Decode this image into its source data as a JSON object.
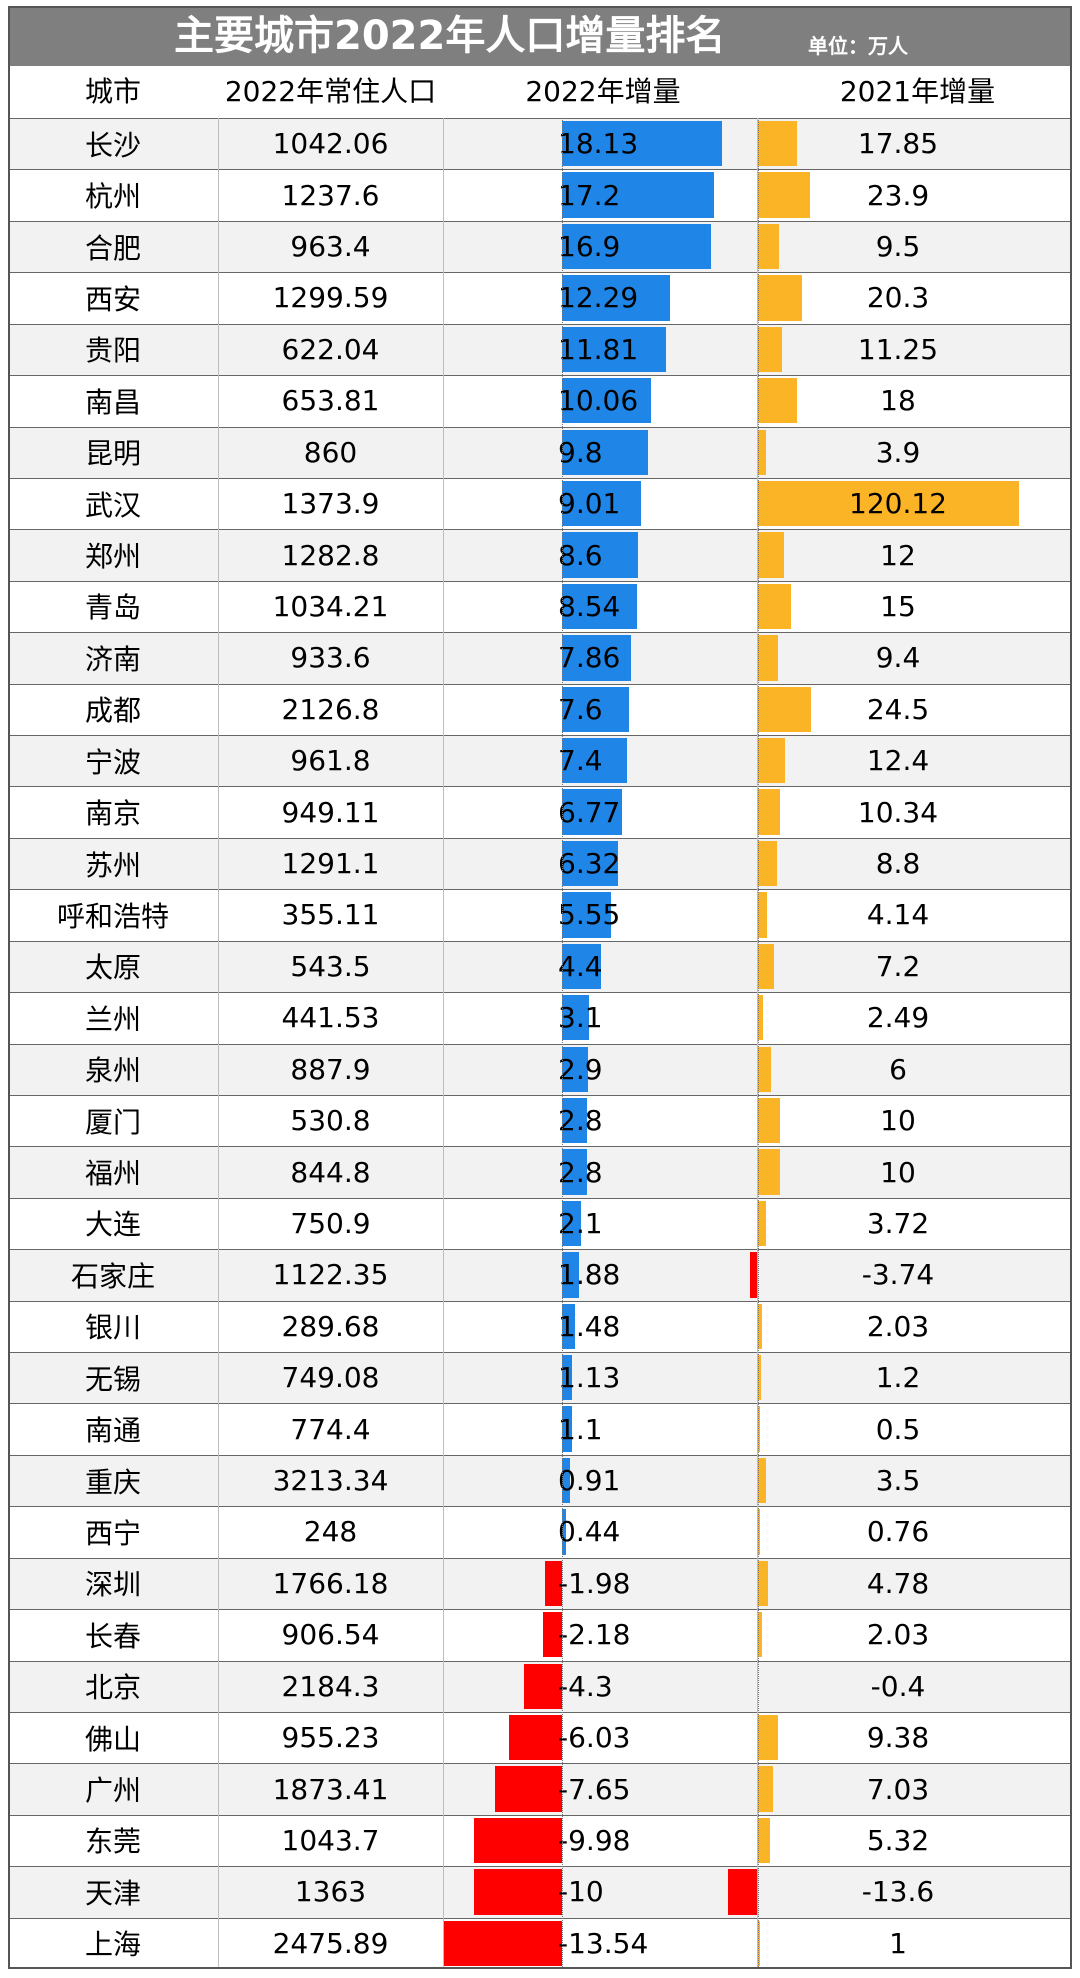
{
  "header": {
    "title": "主要城市2022年人口增量排名",
    "unit": "单位：万人"
  },
  "columns": {
    "city": "城市",
    "population": "2022年常住人口",
    "inc2022": "2022年增量",
    "inc2021": "2021年增量"
  },
  "colors": {
    "positive_2022": "#1f86e8",
    "positive_2021": "#fbb426",
    "negative": "#ff0000",
    "title_bg": "#7f7f7f"
  },
  "chart_data": {
    "type": "bar",
    "categories": [
      "长沙",
      "杭州",
      "合肥",
      "西安",
      "贵阳",
      "南昌",
      "昆明",
      "武汉",
      "郑州",
      "青岛",
      "济南",
      "成都",
      "宁波",
      "南京",
      "苏州",
      "呼和浩特",
      "太原",
      "兰州",
      "泉州",
      "厦门",
      "福州",
      "大连",
      "石家庄",
      "银川",
      "无锡",
      "南通",
      "重庆",
      "西宁",
      "深圳",
      "长春",
      "北京",
      "佛山",
      "广州",
      "东莞",
      "天津",
      "上海"
    ],
    "population_2022": [
      1042.06,
      1237.6,
      963.4,
      1299.59,
      622.04,
      653.81,
      860,
      1373.9,
      1282.8,
      1034.21,
      933.6,
      2126.8,
      961.8,
      949.11,
      1291.1,
      355.11,
      543.5,
      441.53,
      887.9,
      530.8,
      844.8,
      750.9,
      1122.35,
      289.68,
      749.08,
      774.4,
      3213.34,
      248,
      1766.18,
      906.54,
      2184.3,
      955.23,
      1873.41,
      1043.7,
      1363,
      2475.89
    ],
    "series": [
      {
        "name": "2022年增量",
        "values": [
          18.13,
          17.2,
          16.9,
          12.29,
          11.81,
          10.06,
          9.8,
          9.01,
          8.6,
          8.54,
          7.86,
          7.6,
          7.4,
          6.77,
          6.32,
          5.55,
          4.4,
          3.1,
          2.9,
          2.8,
          2.8,
          2.1,
          1.88,
          1.48,
          1.13,
          1.1,
          0.91,
          0.44,
          -1.98,
          -2.18,
          -4.3,
          -6.03,
          -7.65,
          -9.98,
          -10,
          -13.54
        ]
      },
      {
        "name": "2021年增量",
        "values": [
          17.85,
          23.9,
          9.5,
          20.3,
          11.25,
          18,
          3.9,
          120.12,
          12,
          15,
          9.4,
          24.5,
          12.4,
          10.34,
          8.8,
          4.14,
          7.2,
          2.49,
          6,
          10,
          10,
          3.72,
          -3.74,
          2.03,
          1.2,
          0.5,
          3.5,
          0.76,
          4.78,
          2.03,
          -0.4,
          9.38,
          7.03,
          5.32,
          -13.6,
          1
        ]
      }
    ]
  }
}
